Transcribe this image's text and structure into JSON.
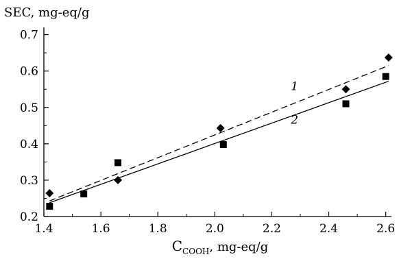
{
  "chart_data": {
    "type": "scatter",
    "ylabel": "SEC,  mg-eq/g",
    "xlabel": {
      "symbol": "C",
      "subscript": "COOH",
      "units": ",  mg-eq/g"
    },
    "xlim": [
      1.4,
      2.62
    ],
    "ylim": [
      0.2,
      0.72
    ],
    "x_ticks": [
      "1.4",
      "1.6",
      "1.8",
      "2.0",
      "2.2",
      "2.4",
      "2.6"
    ],
    "y_ticks": [
      "0.2",
      "0.3",
      "0.4",
      "0.5",
      "0.6",
      "0.7"
    ],
    "x_tick_values": [
      1.4,
      1.6,
      1.8,
      2.0,
      2.2,
      2.4,
      2.6
    ],
    "y_tick_values": [
      0.2,
      0.3,
      0.4,
      0.5,
      0.6,
      0.7
    ],
    "grid": false,
    "series": [
      {
        "name": "1",
        "marker": "diamond",
        "line_style": "dashed",
        "points": [
          {
            "x": 1.42,
            "y": 0.264
          },
          {
            "x": 1.66,
            "y": 0.3
          },
          {
            "x": 2.02,
            "y": 0.443
          },
          {
            "x": 2.46,
            "y": 0.55
          },
          {
            "x": 2.61,
            "y": 0.637
          }
        ],
        "fit_line": [
          {
            "x": 1.42,
            "y": 0.243
          },
          {
            "x": 2.61,
            "y": 0.615
          }
        ]
      },
      {
        "name": "2",
        "marker": "square",
        "line_style": "solid",
        "points": [
          {
            "x": 1.42,
            "y": 0.228
          },
          {
            "x": 1.54,
            "y": 0.262
          },
          {
            "x": 1.66,
            "y": 0.348
          },
          {
            "x": 2.03,
            "y": 0.398
          },
          {
            "x": 2.46,
            "y": 0.51
          },
          {
            "x": 2.6,
            "y": 0.585
          }
        ],
        "fit_line": [
          {
            "x": 1.42,
            "y": 0.238
          },
          {
            "x": 2.61,
            "y": 0.572
          }
        ]
      }
    ],
    "series_label_positions": [
      {
        "x": 2.28,
        "y": 0.548
      },
      {
        "x": 2.28,
        "y": 0.455
      }
    ]
  }
}
